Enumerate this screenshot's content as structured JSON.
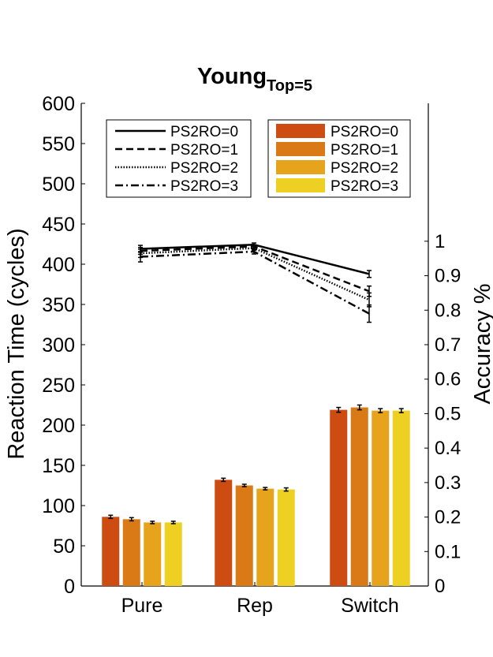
{
  "chart_data": {
    "type": "bar",
    "title_main": "Young",
    "title_sub": "Top=5",
    "categories": [
      "Pure",
      "Rep",
      "Switch"
    ],
    "ylabel_left": "Reaction Time (cycles)",
    "ylabel_right": "Accuracy %",
    "ylim_left": [
      0,
      600
    ],
    "yticks_left": [
      0,
      50,
      100,
      150,
      200,
      250,
      300,
      350,
      400,
      450,
      500,
      550,
      600
    ],
    "ylim_right": [
      0,
      1.4
    ],
    "yticks_right": [
      0,
      0.1,
      0.2,
      0.3,
      0.4,
      0.5,
      0.6,
      0.7,
      0.8,
      0.9,
      1
    ],
    "ytick_labels_right": [
      "0",
      "0.1",
      "0.2",
      "0.3",
      "0.4",
      "0.5",
      "0.6",
      "0.7",
      "0.8",
      "0.9",
      "1"
    ],
    "bar_series": [
      {
        "name": "PS2RO=0",
        "color": "#cc4c12",
        "values": [
          86,
          132,
          219
        ],
        "errors": [
          2,
          2,
          3
        ]
      },
      {
        "name": "PS2RO=1",
        "color": "#d97a16",
        "values": [
          83,
          125,
          222
        ],
        "errors": [
          2,
          1.5,
          3
        ]
      },
      {
        "name": "PS2RO=2",
        "color": "#e5a41c",
        "values": [
          79,
          121,
          218
        ],
        "errors": [
          1.5,
          1.5,
          2.5
        ]
      },
      {
        "name": "PS2RO=3",
        "color": "#edd022",
        "values": [
          79,
          120,
          218
        ],
        "errors": [
          1.5,
          2,
          2.5
        ]
      }
    ],
    "line_series": [
      {
        "name": "PS2RO=0",
        "dash": "solid",
        "values": [
          0.978,
          0.99,
          0.905
        ],
        "errors": [
          0.01,
          0.005,
          0.01
        ]
      },
      {
        "name": "PS2RO=1",
        "dash": "dashed",
        "values": [
          0.972,
          0.985,
          0.855
        ],
        "errors": [
          0.01,
          0.005,
          0.015
        ]
      },
      {
        "name": "PS2RO=2",
        "dash": "dotted",
        "values": [
          0.965,
          0.98,
          0.83
        ],
        "errors": [
          0.012,
          0.006,
          0.02
        ]
      },
      {
        "name": "PS2RO=3",
        "dash": "dashdot",
        "values": [
          0.955,
          0.97,
          0.79
        ],
        "errors": [
          0.015,
          0.007,
          0.025
        ]
      }
    ],
    "legend_lines_position": "top-left",
    "legend_bars_position": "top-right",
    "grid": false
  }
}
